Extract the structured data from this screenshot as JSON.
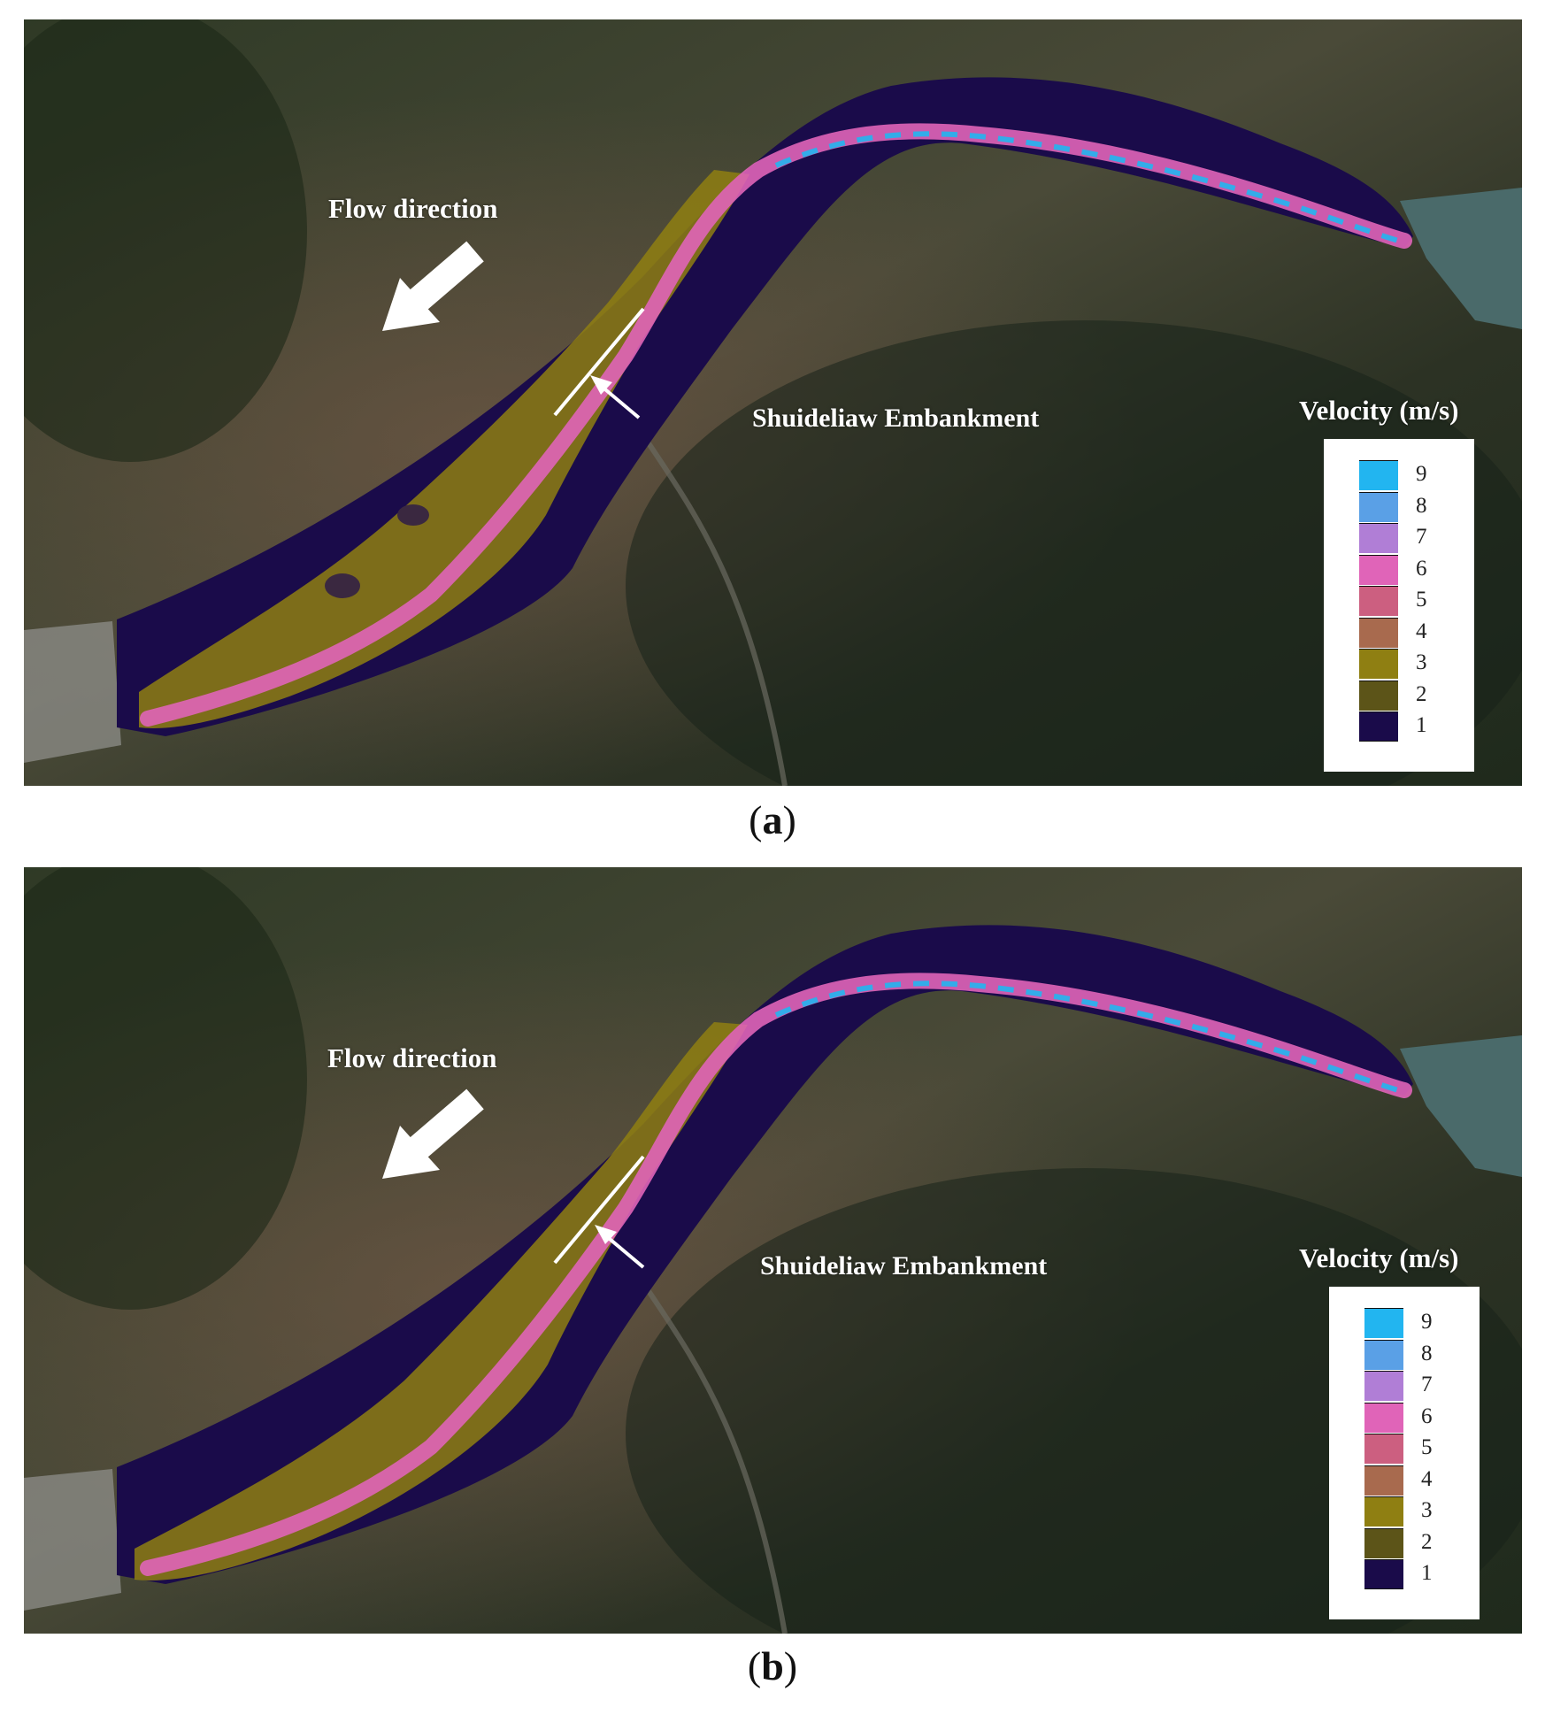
{
  "panels": [
    {
      "caption_letter": "a",
      "flow_label": "Flow direction",
      "embankment_label": "Shuideliaw Embankment",
      "legend_title": "Velocity (m/s)"
    },
    {
      "caption_letter": "b",
      "flow_label": "Flow direction",
      "embankment_label": "Shuideliaw Embankment",
      "legend_title": "Velocity (m/s)"
    }
  ],
  "legend": {
    "unit": "m/s",
    "classes": [
      {
        "value": "9",
        "color": "#22b5f0"
      },
      {
        "value": "8",
        "color": "#5aa0e6"
      },
      {
        "value": "7",
        "color": "#b07ed6"
      },
      {
        "value": "6",
        "color": "#e064b8"
      },
      {
        "value": "5",
        "color": "#cc5f80"
      },
      {
        "value": "4",
        "color": "#a86a4e"
      },
      {
        "value": "3",
        "color": "#8f7f12"
      },
      {
        "value": "2",
        "color": "#5c5418"
      },
      {
        "value": "1",
        "color": "#1a0b4a"
      }
    ]
  },
  "map_colors": {
    "background_terrain": "#3a4030",
    "river_low_velocity": "#1a0b4a",
    "bay_water": "#4a6a6a"
  }
}
